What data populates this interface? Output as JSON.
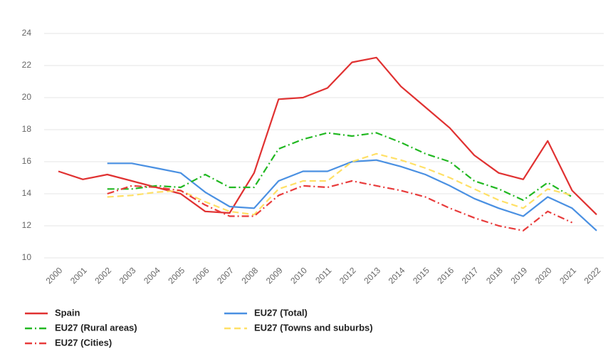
{
  "chart_data": {
    "type": "line",
    "categories": [
      "2000",
      "2001",
      "2002",
      "2003",
      "2004",
      "2005",
      "2006",
      "2007",
      "2008",
      "2009",
      "2010",
      "2011",
      "2012",
      "2013",
      "2014",
      "2015",
      "2016",
      "2017",
      "2018",
      "2019",
      "2020",
      "2021",
      "2022"
    ],
    "ylim": [
      10,
      24
    ],
    "yticks": [
      10,
      12,
      14,
      16,
      18,
      20,
      22,
      24
    ],
    "grid": true,
    "legend": "bottom",
    "series": [
      {
        "name": "Spain",
        "color": "#e03131",
        "style": "solid",
        "values": [
          15.4,
          14.9,
          15.2,
          14.8,
          14.4,
          14.0,
          12.9,
          12.8,
          15.3,
          19.9,
          20.0,
          20.6,
          22.2,
          22.5,
          20.7,
          19.4,
          18.1,
          16.4,
          15.3,
          14.9,
          17.3,
          14.2,
          12.7
        ]
      },
      {
        "name": "EU27 (Total)",
        "color": "#4a90e2",
        "style": "solid",
        "values": [
          null,
          null,
          15.9,
          15.9,
          15.6,
          15.3,
          14.1,
          13.2,
          13.1,
          14.8,
          15.4,
          15.4,
          16.0,
          16.1,
          15.7,
          15.2,
          14.5,
          13.7,
          13.1,
          12.6,
          13.8,
          13.1,
          11.7
        ]
      },
      {
        "name": "EU27 (Rural areas)",
        "color": "#22b822",
        "style": "dashdot",
        "values": [
          null,
          null,
          14.3,
          14.3,
          14.5,
          14.4,
          15.2,
          14.4,
          14.4,
          16.8,
          17.4,
          17.8,
          17.6,
          17.8,
          17.2,
          16.5,
          16.0,
          14.8,
          14.3,
          13.6,
          14.7,
          13.8,
          null
        ]
      },
      {
        "name": "EU27 (Towns and suburbs)",
        "color": "#ffe066",
        "style": "dashed",
        "values": [
          null,
          null,
          13.8,
          13.9,
          14.1,
          14.2,
          13.5,
          12.9,
          12.7,
          14.3,
          14.8,
          14.8,
          16.0,
          16.5,
          16.1,
          15.6,
          15.0,
          14.3,
          13.6,
          13.1,
          14.3,
          13.9,
          null
        ]
      },
      {
        "name": "EU27 (Cities)",
        "color": "#e83b3b",
        "style": "dashdot",
        "values": [
          null,
          null,
          14.0,
          14.5,
          14.4,
          14.2,
          13.3,
          12.6,
          12.6,
          13.9,
          14.5,
          14.4,
          14.8,
          14.5,
          14.2,
          13.8,
          13.1,
          12.5,
          12.0,
          11.7,
          12.9,
          12.2,
          null
        ]
      }
    ]
  }
}
